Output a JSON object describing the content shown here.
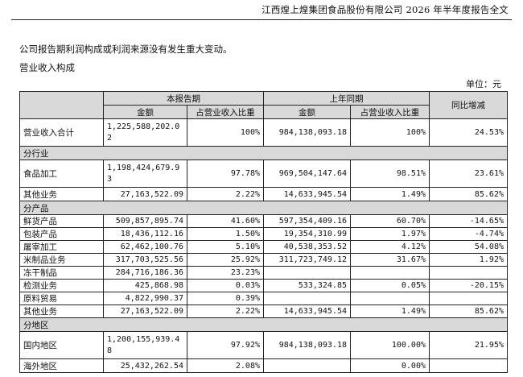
{
  "header": {
    "title": "江西煌上煌集团食品股份有限公司 2026 年半年度报告全文"
  },
  "intro": "公司报告期利润构成或利润来源没有发生重大变动。",
  "section_title": "营业收入构成",
  "unit": "单位：元",
  "table": {
    "group_current": "本报告期",
    "group_prior": "上年同期",
    "col_yoy": "同比增减",
    "col_amount": "金额",
    "col_ratio": "占营业收入比重",
    "total": {
      "label": "营业收入合计",
      "cur_amount": "1,225,588,202.02",
      "cur_ratio": "100%",
      "prior_amount": "984,138,093.18",
      "prior_ratio": "100%",
      "yoy": "24.53%"
    },
    "sec_industry": "分行业",
    "industry_rows": [
      {
        "label": "食品加工",
        "cur_amount": "1,198,424,679.93",
        "cur_ratio": "97.78%",
        "prior_amount": "969,504,147.64",
        "prior_ratio": "98.51%",
        "yoy": "23.61%"
      },
      {
        "label": "其他业务",
        "cur_amount": "27,163,522.09",
        "cur_ratio": "2.22%",
        "prior_amount": "14,633,945.54",
        "prior_ratio": "1.49%",
        "yoy": "85.62%"
      }
    ],
    "sec_product": "分产品",
    "product_rows": [
      {
        "label": "鲜货产品",
        "cur_amount": "509,857,895.74",
        "cur_ratio": "41.60%",
        "prior_amount": "597,354,409.16",
        "prior_ratio": "60.70%",
        "yoy": "-14.65%"
      },
      {
        "label": "包装产品",
        "cur_amount": "18,436,112.16",
        "cur_ratio": "1.50%",
        "prior_amount": "19,354,310.99",
        "prior_ratio": "1.97%",
        "yoy": "-4.74%"
      },
      {
        "label": "屠宰加工",
        "cur_amount": "62,462,100.76",
        "cur_ratio": "5.10%",
        "prior_amount": "40,538,353.52",
        "prior_ratio": "4.12%",
        "yoy": "54.08%"
      },
      {
        "label": "米制品业务",
        "cur_amount": "317,703,525.56",
        "cur_ratio": "25.92%",
        "prior_amount": "311,723,749.12",
        "prior_ratio": "31.67%",
        "yoy": "1.92%"
      },
      {
        "label": "冻干制品",
        "cur_amount": "284,716,186.36",
        "cur_ratio": "23.23%",
        "prior_amount": "",
        "prior_ratio": "",
        "yoy": ""
      },
      {
        "label": "检测业务",
        "cur_amount": "425,868.98",
        "cur_ratio": "0.03%",
        "prior_amount": "533,324.85",
        "prior_ratio": "0.05%",
        "yoy": "-20.15%"
      },
      {
        "label": "原料贸易",
        "cur_amount": "4,822,990.37",
        "cur_ratio": "0.39%",
        "prior_amount": "",
        "prior_ratio": "",
        "yoy": ""
      },
      {
        "label": "其他业务",
        "cur_amount": "27,163,522.09",
        "cur_ratio": "2.22%",
        "prior_amount": "14,633,945.54",
        "prior_ratio": "1.49%",
        "yoy": "85.62%"
      }
    ],
    "sec_region": "分地区",
    "region_rows": [
      {
        "label": "国内地区",
        "cur_amount": "1,200,155,939.48",
        "cur_ratio": "97.92%",
        "prior_amount": "984,138,093.18",
        "prior_ratio": "100.00%",
        "yoy": "21.95%"
      },
      {
        "label": "海外地区",
        "cur_amount": "25,432,262.54",
        "cur_ratio": "2.08%",
        "prior_amount": "",
        "prior_ratio": "0.00%",
        "yoy": ""
      }
    ]
  }
}
